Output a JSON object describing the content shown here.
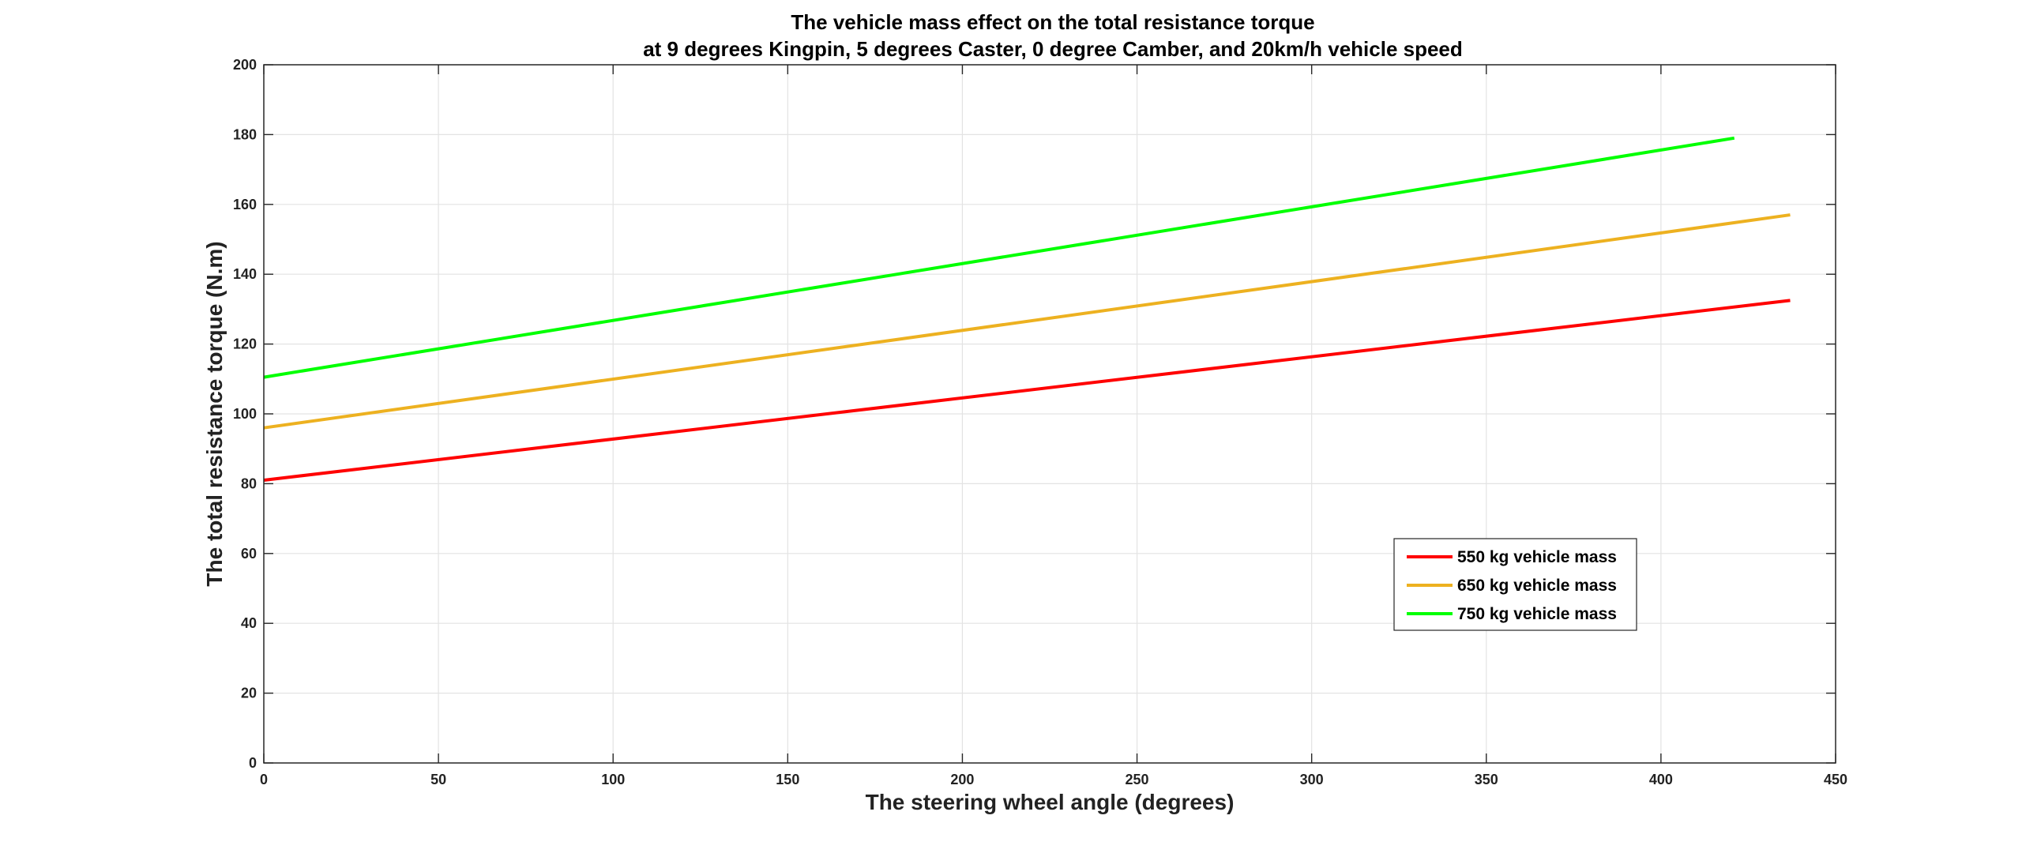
{
  "chart_data": {
    "type": "line",
    "title": "The vehicle mass effect on the total resistance torque",
    "subtitle": "at 9 degrees Kingpin, 5 degrees Caster, 0 degree Camber, and 20km/h vehicle speed",
    "xlabel": "The steering wheel angle (degrees)",
    "ylabel": "The total resistance torque (N.m)",
    "xlim": [
      0,
      450
    ],
    "ylim": [
      0,
      200
    ],
    "xticks": [
      0,
      50,
      100,
      150,
      200,
      250,
      300,
      350,
      400,
      450
    ],
    "yticks": [
      0,
      20,
      40,
      60,
      80,
      100,
      120,
      140,
      160,
      180,
      200
    ],
    "grid": true,
    "legend_position": "lower-right",
    "series": [
      {
        "name": "550 kg vehicle mass",
        "color": "#ff0000",
        "x": [
          0,
          437
        ],
        "y": [
          81,
          132.5
        ]
      },
      {
        "name": "650 kg vehicle mass",
        "color": "#edb120",
        "x": [
          0,
          437
        ],
        "y": [
          96,
          157
        ]
      },
      {
        "name": "750 kg vehicle mass",
        "color": "#00ff00",
        "x": [
          0,
          421
        ],
        "y": [
          110.5,
          179
        ]
      }
    ]
  }
}
